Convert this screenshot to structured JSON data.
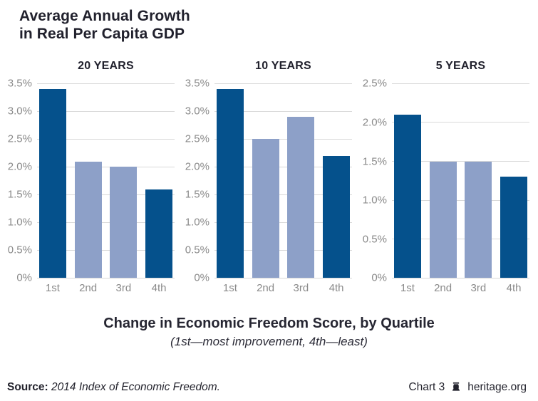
{
  "page_title": {
    "line1": "Average Annual Growth",
    "line2": "in Real Per Capita GDP"
  },
  "colors": {
    "dark_bar": "#05518c",
    "light_bar": "#8da0c8",
    "gridline": "#d9d9d9",
    "axis_text": "#8a8a8a",
    "heading_text": "#21212d"
  },
  "chart_data": [
    {
      "type": "bar",
      "title": "20 YEARS",
      "categories": [
        "1st",
        "2nd",
        "3rd",
        "4th"
      ],
      "values": [
        3.4,
        2.1,
        2.0,
        1.6
      ],
      "bar_styles": [
        "dark",
        "light",
        "light",
        "dark"
      ],
      "ylim": [
        0,
        3.5
      ],
      "yticks": [
        {
          "v": 3.5,
          "label": "3.5%"
        },
        {
          "v": 3.0,
          "label": "3.0%"
        },
        {
          "v": 2.5,
          "label": "2.5%"
        },
        {
          "v": 2.0,
          "label": "2.0%"
        },
        {
          "v": 1.5,
          "label": "1.5%"
        },
        {
          "v": 1.0,
          "label": "1.0%"
        },
        {
          "v": 0.5,
          "label": "0.5%"
        },
        {
          "v": 0,
          "label": "0%"
        }
      ],
      "grid": true,
      "legend": "none"
    },
    {
      "type": "bar",
      "title": "10 YEARS",
      "categories": [
        "1st",
        "2nd",
        "3rd",
        "4th"
      ],
      "values": [
        3.4,
        2.5,
        2.9,
        2.2
      ],
      "bar_styles": [
        "dark",
        "light",
        "light",
        "dark"
      ],
      "ylim": [
        0,
        3.5
      ],
      "yticks": [
        {
          "v": 3.5,
          "label": "3.5%"
        },
        {
          "v": 3.0,
          "label": "3.0%"
        },
        {
          "v": 2.5,
          "label": "2.5%"
        },
        {
          "v": 2.0,
          "label": "2.0%"
        },
        {
          "v": 1.5,
          "label": "1.5%"
        },
        {
          "v": 1.0,
          "label": "1.0%"
        },
        {
          "v": 0.5,
          "label": "0.5%"
        },
        {
          "v": 0,
          "label": "0%"
        }
      ],
      "grid": true,
      "legend": "none"
    },
    {
      "type": "bar",
      "title": "5 YEARS",
      "categories": [
        "1st",
        "2nd",
        "3rd",
        "4th"
      ],
      "values": [
        2.1,
        1.5,
        1.5,
        1.3
      ],
      "bar_styles": [
        "dark",
        "light",
        "light",
        "dark"
      ],
      "ylim": [
        0,
        2.5
      ],
      "yticks": [
        {
          "v": 2.5,
          "label": "2.5%"
        },
        {
          "v": 2.0,
          "label": "2.0%"
        },
        {
          "v": 1.5,
          "label": "1.5%"
        },
        {
          "v": 1.0,
          "label": "1.0%"
        },
        {
          "v": 0.5,
          "label": "0.5%"
        },
        {
          "v": 0,
          "label": "0%"
        }
      ],
      "grid": true,
      "legend": "none"
    }
  ],
  "caption": {
    "line1": "Change in Economic Freedom Score, by Quartile",
    "line2": "(1st—most improvement, 4th—least)"
  },
  "footer": {
    "source_label": "Source:",
    "source_text": "2014 Index of Economic Freedom.",
    "chart_label": "Chart 3",
    "logo_icon": "liberty-bell-icon",
    "site": "heritage.org"
  }
}
